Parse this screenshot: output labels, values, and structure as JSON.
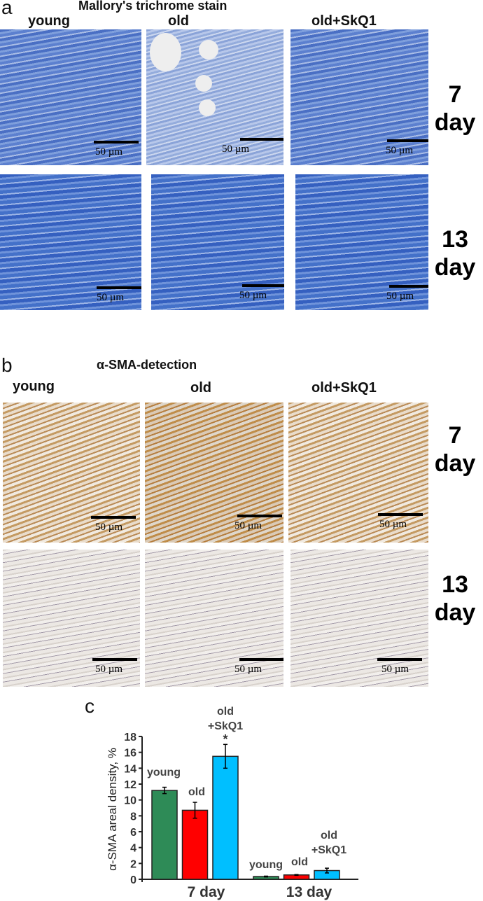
{
  "panel_a": {
    "letter": "a",
    "title": "Mallory's trichrome stain",
    "columns": [
      "young",
      "old",
      "old+SkQ1"
    ],
    "rows": [
      {
        "label1": "7",
        "label2": "day"
      },
      {
        "label1": "13",
        "label2": "day"
      }
    ],
    "scale": "50 µm"
  },
  "panel_b": {
    "letter": "b",
    "title": "α-SMA-detection",
    "columns": [
      "young",
      "old",
      "old+SkQ1"
    ],
    "rows": [
      {
        "label1": "7",
        "label2": "day"
      },
      {
        "label1": "13",
        "label2": "day"
      }
    ],
    "scale": "50 µm"
  },
  "panel_c": {
    "letter": "c"
  },
  "chart_data": {
    "type": "bar",
    "categories": [
      "7 day",
      "13 day"
    ],
    "ylabel": "α-SMA areal density, %",
    "ylim": [
      0,
      18
    ],
    "yticks": [
      0,
      2,
      4,
      6,
      8,
      10,
      12,
      14,
      16,
      18
    ],
    "series": [
      {
        "name": "young",
        "color": "#2e8b57",
        "values": [
          11.2,
          0.35
        ],
        "errors": [
          0.4,
          0.05
        ]
      },
      {
        "name": "old",
        "color": "#ff0000",
        "values": [
          8.7,
          0.55
        ],
        "errors": [
          1.0,
          0.05
        ]
      },
      {
        "name": "old +SkQ1",
        "color": "#00bfff",
        "values": [
          15.5,
          1.1
        ],
        "errors": [
          1.5,
          0.3
        ]
      }
    ],
    "annotations": [
      {
        "text": "*",
        "category": "7 day",
        "series": "old +SkQ1"
      }
    ],
    "bar_labels": {
      "young": "young",
      "old": "old",
      "skq_line1": "old",
      "skq_line2": "+SkQ1"
    }
  }
}
